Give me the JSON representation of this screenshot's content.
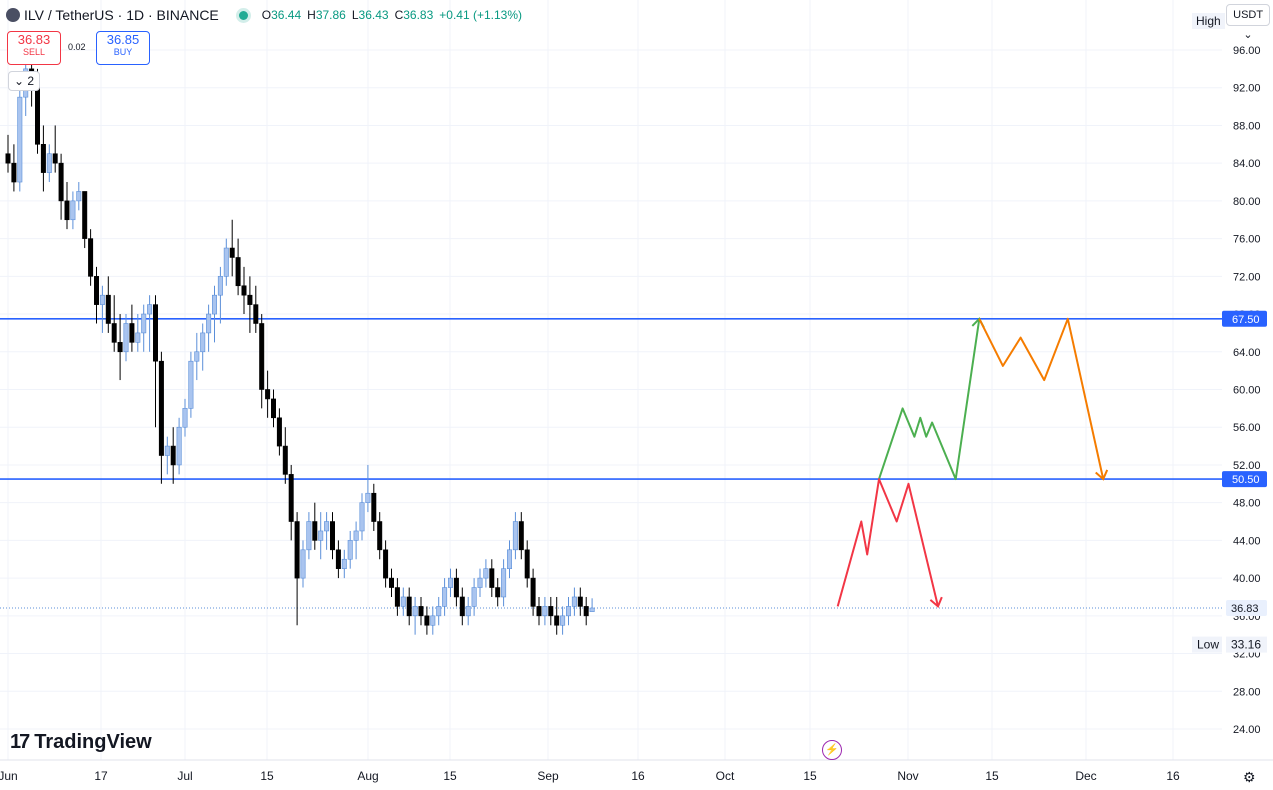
{
  "header": {
    "symbol": "ILV / TetherUS · 1D · BINANCE",
    "ohlc": [
      {
        "key": "O",
        "value": "36.44"
      },
      {
        "key": "H",
        "value": "37.86"
      },
      {
        "key": "L",
        "value": "36.43"
      },
      {
        "key": "C",
        "value": "36.83"
      },
      {
        "key": "",
        "value": "+0.41 (+1.13%)"
      }
    ]
  },
  "trade": {
    "sell_price": "36.83",
    "sell_label": "SELL",
    "spread": "0.02",
    "buy_price": "36.85",
    "buy_label": "BUY"
  },
  "indicator_count": "2",
  "high_badge": "High",
  "currency": "USDT",
  "brand": "TradingView",
  "colors": {
    "up": "#a9c4ef",
    "down": "#000000",
    "level": "#2962ff",
    "green_path": "#4caf50",
    "orange_path": "#f57c00",
    "red_path": "#f23645"
  },
  "chart_data": {
    "type": "candlestick",
    "ylim": [
      22.0,
      98.0
    ],
    "y_ticks": [
      "96.00",
      "92.00",
      "88.00",
      "84.00",
      "80.00",
      "76.00",
      "72.00",
      "68.00",
      "64.00",
      "60.00",
      "56.00",
      "52.00",
      "48.00",
      "44.00",
      "40.00",
      "36.00",
      "32.00",
      "28.00",
      "24.00"
    ],
    "x_labels": [
      "Jun",
      "17",
      "Jul",
      "15",
      "Aug",
      "15",
      "Sep",
      "16",
      "Oct",
      "15",
      "Nov",
      "15",
      "Dec",
      "16"
    ],
    "levels": [
      {
        "price": 67.5,
        "label": "67.50"
      },
      {
        "price": 50.5,
        "label": "50.50"
      }
    ],
    "current_price": {
      "price": 36.83,
      "label": "36.83"
    },
    "low": {
      "price": 33.16,
      "label": "33.16",
      "tag": "Low"
    },
    "candles": [
      [
        85,
        87,
        83,
        84
      ],
      [
        84,
        86,
        81,
        82
      ],
      [
        82,
        92,
        81,
        91
      ],
      [
        91,
        95,
        89,
        94
      ],
      [
        94,
        96,
        90,
        92
      ],
      [
        92,
        94,
        85,
        86
      ],
      [
        86,
        88,
        81,
        83
      ],
      [
        83,
        86,
        82,
        85
      ],
      [
        85,
        88,
        83,
        84
      ],
      [
        84,
        85,
        78,
        80
      ],
      [
        80,
        82,
        77,
        78
      ],
      [
        78,
        81,
        77,
        80
      ],
      [
        80,
        82,
        79,
        81
      ],
      [
        81,
        81,
        75,
        76
      ],
      [
        76,
        77,
        71,
        72
      ],
      [
        72,
        73,
        67,
        69
      ],
      [
        69,
        71,
        66,
        70
      ],
      [
        70,
        72,
        66,
        67
      ],
      [
        67,
        70,
        64,
        65
      ],
      [
        65,
        68,
        61,
        64
      ],
      [
        64,
        68,
        63,
        67
      ],
      [
        67,
        69,
        64,
        65
      ],
      [
        65,
        68,
        64,
        66
      ],
      [
        66,
        69,
        64,
        68
      ],
      [
        68,
        70,
        64,
        69
      ],
      [
        69,
        70,
        56,
        63
      ],
      [
        63,
        64,
        50,
        53
      ],
      [
        53,
        55,
        51,
        54
      ],
      [
        54,
        56,
        50,
        52
      ],
      [
        52,
        57,
        51,
        56
      ],
      [
        56,
        59,
        55,
        58
      ],
      [
        58,
        64,
        57,
        63
      ],
      [
        63,
        66,
        61,
        64
      ],
      [
        64,
        67,
        62,
        66
      ],
      [
        66,
        69,
        64,
        68
      ],
      [
        68,
        71,
        65,
        70
      ],
      [
        70,
        73,
        67,
        72
      ],
      [
        72,
        76,
        71,
        75
      ],
      [
        75,
        78,
        72,
        74
      ],
      [
        74,
        76,
        70,
        71
      ],
      [
        71,
        73,
        68,
        70
      ],
      [
        70,
        72,
        66,
        69
      ],
      [
        69,
        71,
        66,
        67
      ],
      [
        67,
        68,
        58,
        60
      ],
      [
        60,
        62,
        57,
        59
      ],
      [
        59,
        60,
        56,
        57
      ],
      [
        57,
        58,
        53,
        54
      ],
      [
        54,
        56,
        50,
        51
      ],
      [
        51,
        52,
        44,
        46
      ],
      [
        46,
        47,
        35,
        40
      ],
      [
        40,
        44,
        39,
        43
      ],
      [
        43,
        47,
        42,
        46
      ],
      [
        46,
        48,
        43,
        44
      ],
      [
        44,
        47,
        42,
        45
      ],
      [
        45,
        47,
        43,
        46
      ],
      [
        46,
        47,
        42,
        43
      ],
      [
        43,
        44,
        40,
        41
      ],
      [
        41,
        43,
        40,
        42
      ],
      [
        42,
        45,
        41,
        44
      ],
      [
        44,
        46,
        42,
        45
      ],
      [
        45,
        49,
        44,
        48
      ],
      [
        48,
        52,
        47,
        49
      ],
      [
        49,
        50,
        45,
        46
      ],
      [
        46,
        47,
        42,
        43
      ],
      [
        43,
        44,
        39,
        40
      ],
      [
        40,
        41,
        38,
        39
      ],
      [
        39,
        40,
        36,
        37
      ],
      [
        37,
        39,
        36,
        38
      ],
      [
        38,
        39,
        35,
        36
      ],
      [
        36,
        38,
        34,
        37
      ],
      [
        37,
        38,
        35,
        36
      ],
      [
        36,
        37,
        34,
        35
      ],
      [
        35,
        37,
        34,
        36
      ],
      [
        36,
        38,
        35,
        37
      ],
      [
        37,
        40,
        36,
        39
      ],
      [
        39,
        41,
        38,
        40
      ],
      [
        40,
        41,
        37,
        38
      ],
      [
        38,
        39,
        35,
        36
      ],
      [
        36,
        38,
        35,
        37
      ],
      [
        37,
        40,
        36,
        39
      ],
      [
        39,
        41,
        38,
        40
      ],
      [
        40,
        42,
        39,
        41
      ],
      [
        41,
        42,
        38,
        39
      ],
      [
        39,
        40,
        37,
        38
      ],
      [
        38,
        42,
        37,
        41
      ],
      [
        41,
        44,
        40,
        43
      ],
      [
        43,
        47,
        42,
        46
      ],
      [
        46,
        47,
        42,
        43
      ],
      [
        43,
        44,
        39,
        40
      ],
      [
        40,
        41,
        36,
        37
      ],
      [
        37,
        38,
        35,
        36
      ],
      [
        36,
        38,
        35,
        37
      ],
      [
        37,
        38,
        35,
        36
      ],
      [
        36,
        38,
        34,
        35
      ],
      [
        35,
        37,
        34,
        36
      ],
      [
        36,
        38,
        35,
        37
      ],
      [
        37,
        39,
        36,
        38
      ],
      [
        38,
        39,
        36,
        37
      ],
      [
        37,
        38,
        35,
        36
      ],
      [
        36.44,
        37.86,
        36.43,
        36.83
      ]
    ]
  },
  "projections": {
    "green": [
      [
        0,
        50.5
      ],
      [
        4,
        58.0
      ],
      [
        6,
        55.0
      ],
      [
        7,
        57.0
      ],
      [
        8,
        55.0
      ],
      [
        9,
        56.5
      ],
      [
        13,
        50.5
      ],
      [
        17,
        67.5
      ]
    ],
    "orange": [
      [
        17,
        67.5
      ],
      [
        21,
        62.5
      ],
      [
        24,
        65.5
      ],
      [
        28,
        61.0
      ],
      [
        32,
        67.5
      ],
      [
        38,
        50.5
      ]
    ],
    "red": [
      [
        -7,
        37.0
      ],
      [
        -3,
        46.0
      ],
      [
        -2,
        42.5
      ],
      [
        0,
        50.5
      ],
      [
        3,
        46.0
      ],
      [
        5,
        50.0
      ],
      [
        10,
        37.0
      ]
    ]
  }
}
